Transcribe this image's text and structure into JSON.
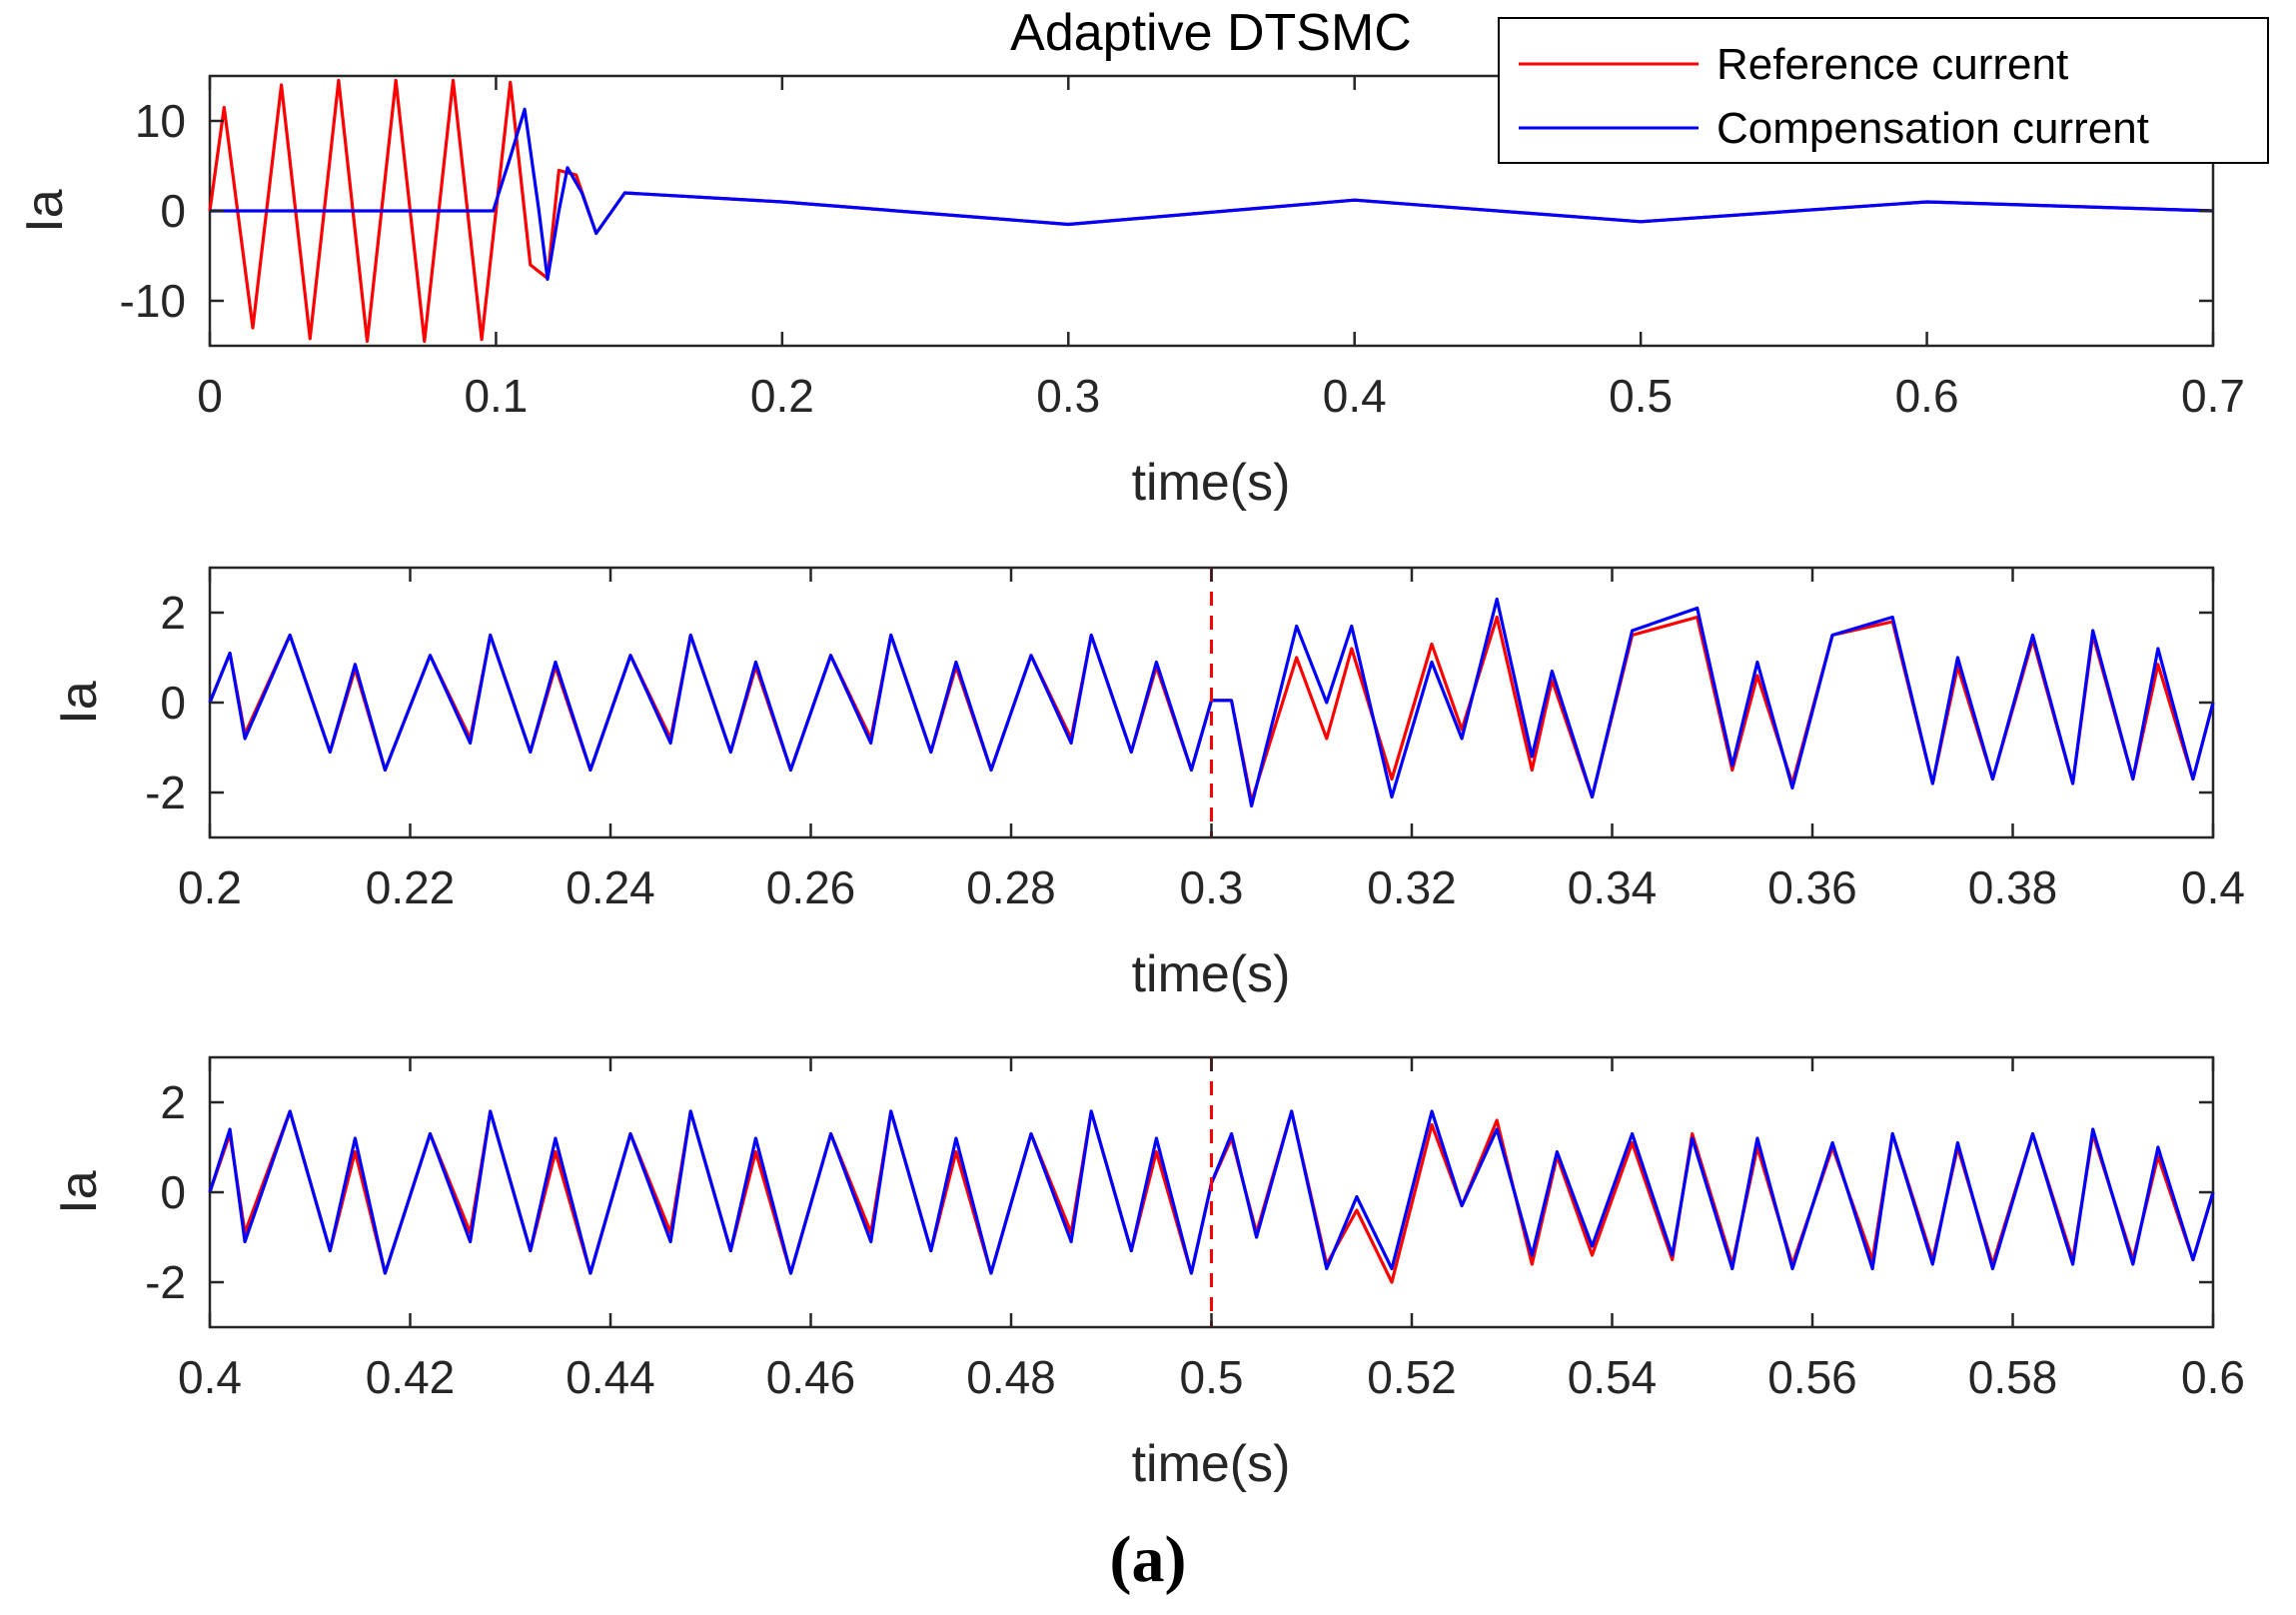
{
  "figure": {
    "caption": "(a)",
    "colors": {
      "reference": "#ff0000",
      "compensation": "#0000ff",
      "marker": "#ff0000",
      "axis": "#262626"
    }
  },
  "chart_data": [
    {
      "type": "line",
      "title": "Adaptive DTSMC",
      "xlabel": "time(s)",
      "ylabel": "Ia",
      "xlim": [
        0,
        0.7
      ],
      "ylim": [
        -15,
        15
      ],
      "xticks": [
        0,
        0.1,
        0.2,
        0.3,
        0.4,
        0.5,
        0.6,
        0.7
      ],
      "xtick_labels": [
        "0",
        "0.1",
        "0.2",
        "0.3",
        "0.4",
        "0.5",
        "0.6",
        "0.7"
      ],
      "yticks": [
        -10,
        0,
        10
      ],
      "ytick_labels": [
        "-10",
        "0",
        "10"
      ],
      "legend": {
        "placement": "top-right",
        "entries": [
          "Reference current",
          "Compensation current"
        ]
      },
      "series": [
        {
          "name": "Reference current",
          "color": "#ff0000",
          "x": [
            0,
            0.005,
            0.015,
            0.025,
            0.035,
            0.045,
            0.055,
            0.065,
            0.075,
            0.085,
            0.095,
            0.105,
            0.112,
            0.118,
            0.122,
            0.128,
            0.135,
            0.145,
            0.2,
            0.3,
            0.4,
            0.5,
            0.6,
            0.7
          ],
          "y": [
            0,
            11.5,
            -13,
            14,
            -14.2,
            14.5,
            -14.5,
            14.5,
            -14.5,
            14.5,
            -14.3,
            14.3,
            -6,
            -7.5,
            4.5,
            4,
            -2.5,
            2,
            1,
            -1.5,
            1.2,
            -1.2,
            1,
            0
          ]
        },
        {
          "name": "Compensation current",
          "color": "#0000ff",
          "x": [
            0,
            0.099,
            0.105,
            0.11,
            0.115,
            0.118,
            0.122,
            0.125,
            0.13,
            0.135,
            0.145,
            0.2,
            0.3,
            0.4,
            0.5,
            0.6,
            0.7
          ],
          "y": [
            0,
            0,
            6,
            11.3,
            0,
            -7.6,
            0,
            4.8,
            2,
            -2.5,
            2,
            1,
            -1.5,
            1.2,
            -1.2,
            1,
            0
          ]
        }
      ]
    },
    {
      "type": "line",
      "title": "",
      "xlabel": "time(s)",
      "ylabel": "Ia",
      "xlim": [
        0.2,
        0.4
      ],
      "ylim": [
        -3,
        3
      ],
      "xticks": [
        0.2,
        0.22,
        0.24,
        0.26,
        0.28,
        0.3,
        0.32,
        0.34,
        0.36,
        0.38,
        0.4
      ],
      "xtick_labels": [
        "0.2",
        "0.22",
        "0.24",
        "0.26",
        "0.28",
        "0.3",
        "0.32",
        "0.34",
        "0.36",
        "0.38",
        "0.4"
      ],
      "yticks": [
        -2,
        0,
        2
      ],
      "ytick_labels": [
        "-2",
        "0",
        "2"
      ],
      "marker_x": 0.3,
      "series": [
        {
          "name": "Reference current",
          "color": "#ff0000",
          "x": [
            0.2,
            0.202,
            0.2035,
            0.208,
            0.212,
            0.2145,
            0.2175,
            0.222,
            0.226,
            0.228,
            0.232,
            0.2345,
            0.238,
            0.242,
            0.246,
            0.248,
            0.252,
            0.2545,
            0.258,
            0.262,
            0.266,
            0.268,
            0.272,
            0.2745,
            0.278,
            0.282,
            0.286,
            0.288,
            0.292,
            0.2945,
            0.298,
            0.3,
            0.302,
            0.304,
            0.3085,
            0.3115,
            0.314,
            0.318,
            0.322,
            0.325,
            0.3285,
            0.332,
            0.334,
            0.338,
            0.342,
            0.3485,
            0.352,
            0.3545,
            0.358,
            0.362,
            0.368,
            0.372,
            0.3745,
            0.378,
            0.382,
            0.386,
            0.388,
            0.392,
            0.3945,
            0.398,
            0.4
          ],
          "y": [
            0,
            1.1,
            -0.7,
            1.5,
            -1.1,
            0.75,
            -1.5,
            1.05,
            -0.8,
            1.5,
            -1.1,
            0.8,
            -1.5,
            1.05,
            -0.8,
            1.5,
            -1.1,
            0.8,
            -1.5,
            1.05,
            -0.8,
            1.5,
            -1.1,
            0.8,
            -1.5,
            1.05,
            -0.8,
            1.5,
            -1.1,
            0.8,
            -1.5,
            0.05,
            0.05,
            -2.2,
            1.0,
            -0.8,
            1.2,
            -1.7,
            1.3,
            -0.6,
            1.9,
            -1.5,
            0.5,
            -2.1,
            1.5,
            1.9,
            -1.5,
            0.6,
            -1.8,
            1.5,
            1.8,
            -1.8,
            0.8,
            -1.7,
            1.4,
            -1.8,
            1.5,
            -1.7,
            0.85,
            -1.7,
            0
          ]
        },
        {
          "name": "Compensation current",
          "color": "#0000ff",
          "x": [
            0.2,
            0.202,
            0.2035,
            0.208,
            0.212,
            0.2145,
            0.2175,
            0.222,
            0.226,
            0.228,
            0.232,
            0.2345,
            0.238,
            0.242,
            0.246,
            0.248,
            0.252,
            0.2545,
            0.258,
            0.262,
            0.266,
            0.268,
            0.272,
            0.2745,
            0.278,
            0.282,
            0.286,
            0.288,
            0.292,
            0.2945,
            0.298,
            0.3,
            0.302,
            0.304,
            0.3085,
            0.3115,
            0.314,
            0.318,
            0.322,
            0.325,
            0.3285,
            0.332,
            0.334,
            0.338,
            0.342,
            0.3485,
            0.352,
            0.3545,
            0.358,
            0.362,
            0.368,
            0.372,
            0.3745,
            0.378,
            0.382,
            0.386,
            0.388,
            0.392,
            0.3945,
            0.398,
            0.4
          ],
          "y": [
            0,
            1.1,
            -0.8,
            1.5,
            -1.1,
            0.85,
            -1.5,
            1.05,
            -0.9,
            1.5,
            -1.1,
            0.9,
            -1.5,
            1.05,
            -0.9,
            1.5,
            -1.1,
            0.9,
            -1.5,
            1.05,
            -0.9,
            1.5,
            -1.1,
            0.9,
            -1.5,
            1.05,
            -0.9,
            1.5,
            -1.1,
            0.9,
            -1.5,
            0.05,
            0.05,
            -2.3,
            1.7,
            0.0,
            1.7,
            -2.1,
            0.9,
            -0.8,
            2.3,
            -1.2,
            0.7,
            -2.1,
            1.6,
            2.1,
            -1.4,
            0.9,
            -1.9,
            1.5,
            1.9,
            -1.8,
            1.0,
            -1.7,
            1.5,
            -1.8,
            1.6,
            -1.7,
            1.2,
            -1.7,
            0
          ]
        }
      ]
    },
    {
      "type": "line",
      "title": "",
      "xlabel": "time(s)",
      "ylabel": "Ia",
      "xlim": [
        0.4,
        0.6
      ],
      "ylim": [
        -3,
        3
      ],
      "xticks": [
        0.4,
        0.42,
        0.44,
        0.46,
        0.48,
        0.5,
        0.52,
        0.54,
        0.56,
        0.58,
        0.6
      ],
      "xtick_labels": [
        "0.4",
        "0.42",
        "0.44",
        "0.46",
        "0.48",
        "0.5",
        "0.52",
        "0.54",
        "0.56",
        "0.58",
        "0.6"
      ],
      "yticks": [
        -2,
        0,
        2
      ],
      "ytick_labels": [
        "-2",
        "0",
        "2"
      ],
      "marker_x": 0.5,
      "series": [
        {
          "name": "Reference current",
          "color": "#ff0000",
          "x": [
            0.4,
            0.402,
            0.4035,
            0.408,
            0.412,
            0.4145,
            0.4175,
            0.422,
            0.426,
            0.428,
            0.432,
            0.4345,
            0.438,
            0.442,
            0.446,
            0.448,
            0.452,
            0.4545,
            0.458,
            0.462,
            0.466,
            0.468,
            0.472,
            0.4745,
            0.478,
            0.482,
            0.486,
            0.488,
            0.492,
            0.4945,
            0.498,
            0.5,
            0.502,
            0.5045,
            0.508,
            0.5115,
            0.5145,
            0.518,
            0.522,
            0.525,
            0.5285,
            0.532,
            0.5345,
            0.538,
            0.542,
            0.546,
            0.548,
            0.552,
            0.5545,
            0.558,
            0.562,
            0.566,
            0.568,
            0.572,
            0.5745,
            0.578,
            0.582,
            0.586,
            0.588,
            0.592,
            0.5945,
            0.598,
            0.6
          ],
          "y": [
            0,
            1.3,
            -0.9,
            1.8,
            -1.3,
            0.9,
            -1.8,
            1.3,
            -0.9,
            1.8,
            -1.3,
            0.9,
            -1.8,
            1.3,
            -0.9,
            1.8,
            -1.3,
            0.9,
            -1.8,
            1.3,
            -0.9,
            1.8,
            -1.3,
            0.9,
            -1.8,
            1.3,
            -0.9,
            1.8,
            -1.3,
            0.9,
            -1.8,
            0.2,
            1.2,
            -0.9,
            1.8,
            -1.6,
            -0.4,
            -2.0,
            1.5,
            -0.3,
            1.6,
            -1.6,
            0.8,
            -1.4,
            1.1,
            -1.5,
            1.3,
            -1.6,
            1.0,
            -1.6,
            1.0,
            -1.5,
            1.3,
            -1.5,
            1.0,
            -1.6,
            1.3,
            -1.5,
            1.3,
            -1.5,
            0.8,
            -1.5,
            0
          ]
        },
        {
          "name": "Compensation current",
          "color": "#0000ff",
          "x": [
            0.4,
            0.402,
            0.4035,
            0.408,
            0.412,
            0.4145,
            0.4175,
            0.422,
            0.426,
            0.428,
            0.432,
            0.4345,
            0.438,
            0.442,
            0.446,
            0.448,
            0.452,
            0.4545,
            0.458,
            0.462,
            0.466,
            0.468,
            0.472,
            0.4745,
            0.478,
            0.482,
            0.486,
            0.488,
            0.492,
            0.4945,
            0.498,
            0.5,
            0.502,
            0.5045,
            0.508,
            0.5115,
            0.5145,
            0.518,
            0.522,
            0.525,
            0.5285,
            0.532,
            0.5345,
            0.538,
            0.542,
            0.546,
            0.548,
            0.552,
            0.5545,
            0.558,
            0.562,
            0.566,
            0.568,
            0.572,
            0.5745,
            0.578,
            0.582,
            0.586,
            0.588,
            0.592,
            0.5945,
            0.598,
            0.6
          ],
          "y": [
            0,
            1.4,
            -1.1,
            1.8,
            -1.3,
            1.2,
            -1.8,
            1.3,
            -1.1,
            1.8,
            -1.3,
            1.2,
            -1.8,
            1.3,
            -1.1,
            1.8,
            -1.3,
            1.2,
            -1.8,
            1.3,
            -1.1,
            1.8,
            -1.3,
            1.2,
            -1.8,
            1.3,
            -1.1,
            1.8,
            -1.3,
            1.2,
            -1.8,
            0.2,
            1.3,
            -1.0,
            1.8,
            -1.7,
            -0.1,
            -1.7,
            1.8,
            -0.3,
            1.4,
            -1.4,
            0.9,
            -1.2,
            1.3,
            -1.4,
            1.2,
            -1.7,
            1.2,
            -1.7,
            1.1,
            -1.7,
            1.3,
            -1.6,
            1.1,
            -1.7,
            1.3,
            -1.6,
            1.4,
            -1.6,
            1.0,
            -1.5,
            0
          ]
        }
      ]
    }
  ]
}
